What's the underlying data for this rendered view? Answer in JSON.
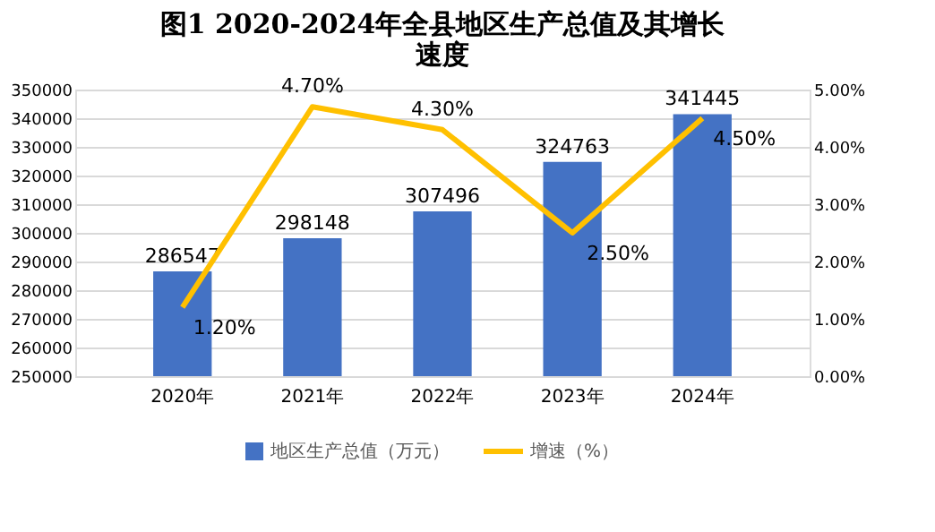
{
  "chart_data": {
    "type": "bar",
    "title": "图1  2020-2024年全县地区生产总值及其增长速度",
    "categories": [
      "2020年",
      "2021年",
      "2022年",
      "2023年",
      "2024年"
    ],
    "series": [
      {
        "name": "地区生产总值（万元）",
        "type": "bar",
        "color": "#4472c4",
        "values": [
          286547,
          298148,
          307496,
          324763,
          341445
        ],
        "value_labels": [
          "286547",
          "298148",
          "307496",
          "324763",
          "341445"
        ]
      },
      {
        "name": "增速（%）",
        "type": "line",
        "axis": "y2",
        "color": "#ffc000",
        "values": [
          1.2,
          4.7,
          4.3,
          2.5,
          4.5
        ],
        "value_labels": [
          "1.20%",
          "4.70%",
          "4.30%",
          "2.50%",
          "4.50%"
        ]
      }
    ],
    "ylim": [
      250000,
      350000
    ],
    "yticks": [
      250000,
      260000,
      270000,
      280000,
      290000,
      300000,
      310000,
      320000,
      330000,
      340000,
      350000
    ],
    "y2lim": [
      0,
      5
    ],
    "y2ticks": [
      {
        "value": 0,
        "label": "0.00%"
      },
      {
        "value": 1,
        "label": "1.00%"
      },
      {
        "value": 2,
        "label": "2.00%"
      },
      {
        "value": 3,
        "label": "3.00%"
      },
      {
        "value": 4,
        "label": "4.00%"
      },
      {
        "value": 5,
        "label": "5.00%"
      }
    ],
    "grid": "y",
    "legend": "bottom",
    "marker": "none",
    "line_style": "solid"
  }
}
